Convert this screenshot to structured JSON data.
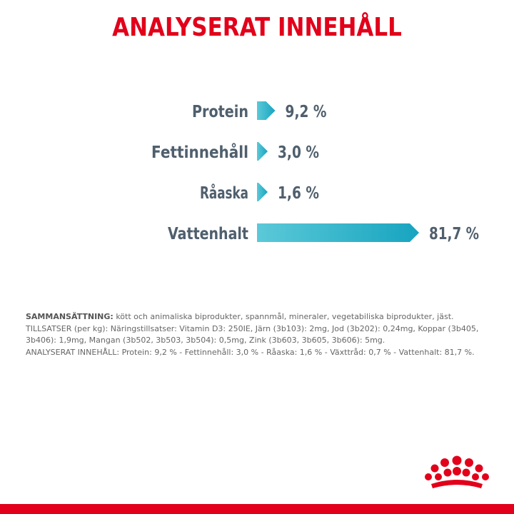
{
  "title": "ANALYSERAT INNEHÅLL",
  "chart_data": {
    "type": "bar",
    "orientation": "horizontal",
    "categories": [
      "Protein",
      "Fettinnehåll",
      "Råaska",
      "Vattenhalt"
    ],
    "values": [
      9.2,
      3.0,
      1.6,
      81.7
    ],
    "value_labels": [
      "9,2 %",
      "3,0 %",
      "1,6 %",
      "81,7 %"
    ],
    "unit": "%",
    "colors": {
      "bar_start": "#5bc9d8",
      "bar_end": "#17a4c0",
      "label": "#4f5f6d"
    },
    "xlim": [
      0,
      81.7
    ]
  },
  "composition": {
    "heading": "SAMMANSÄTTNING:",
    "heading_text": " kött och animaliska biprodukter, spannmål, mineraler, vegetabiliska biprodukter, jäst.",
    "additives": "TILLSATSER (per kg): Näringstillsatser: Vitamin D3: 250IE, Järn (3b103): 2mg, Jod (3b202): 0,24mg, Koppar (3b405, 3b406): 1,9mg, Mangan (3b502, 3b503, 3b504): 0,5mg, Zink (3b603, 3b605, 3b606): 5mg.",
    "analysis": "ANALYSERAT INNEHÅLL: Protein: 9,2 % - Fettinnehåll: 3,0 % - Råaska: 1,6 % - Växttråd: 0,7 % - Vattenhalt: 81,7 %."
  },
  "logo": {
    "icon": "crown-icon",
    "color": "#e2001a"
  }
}
